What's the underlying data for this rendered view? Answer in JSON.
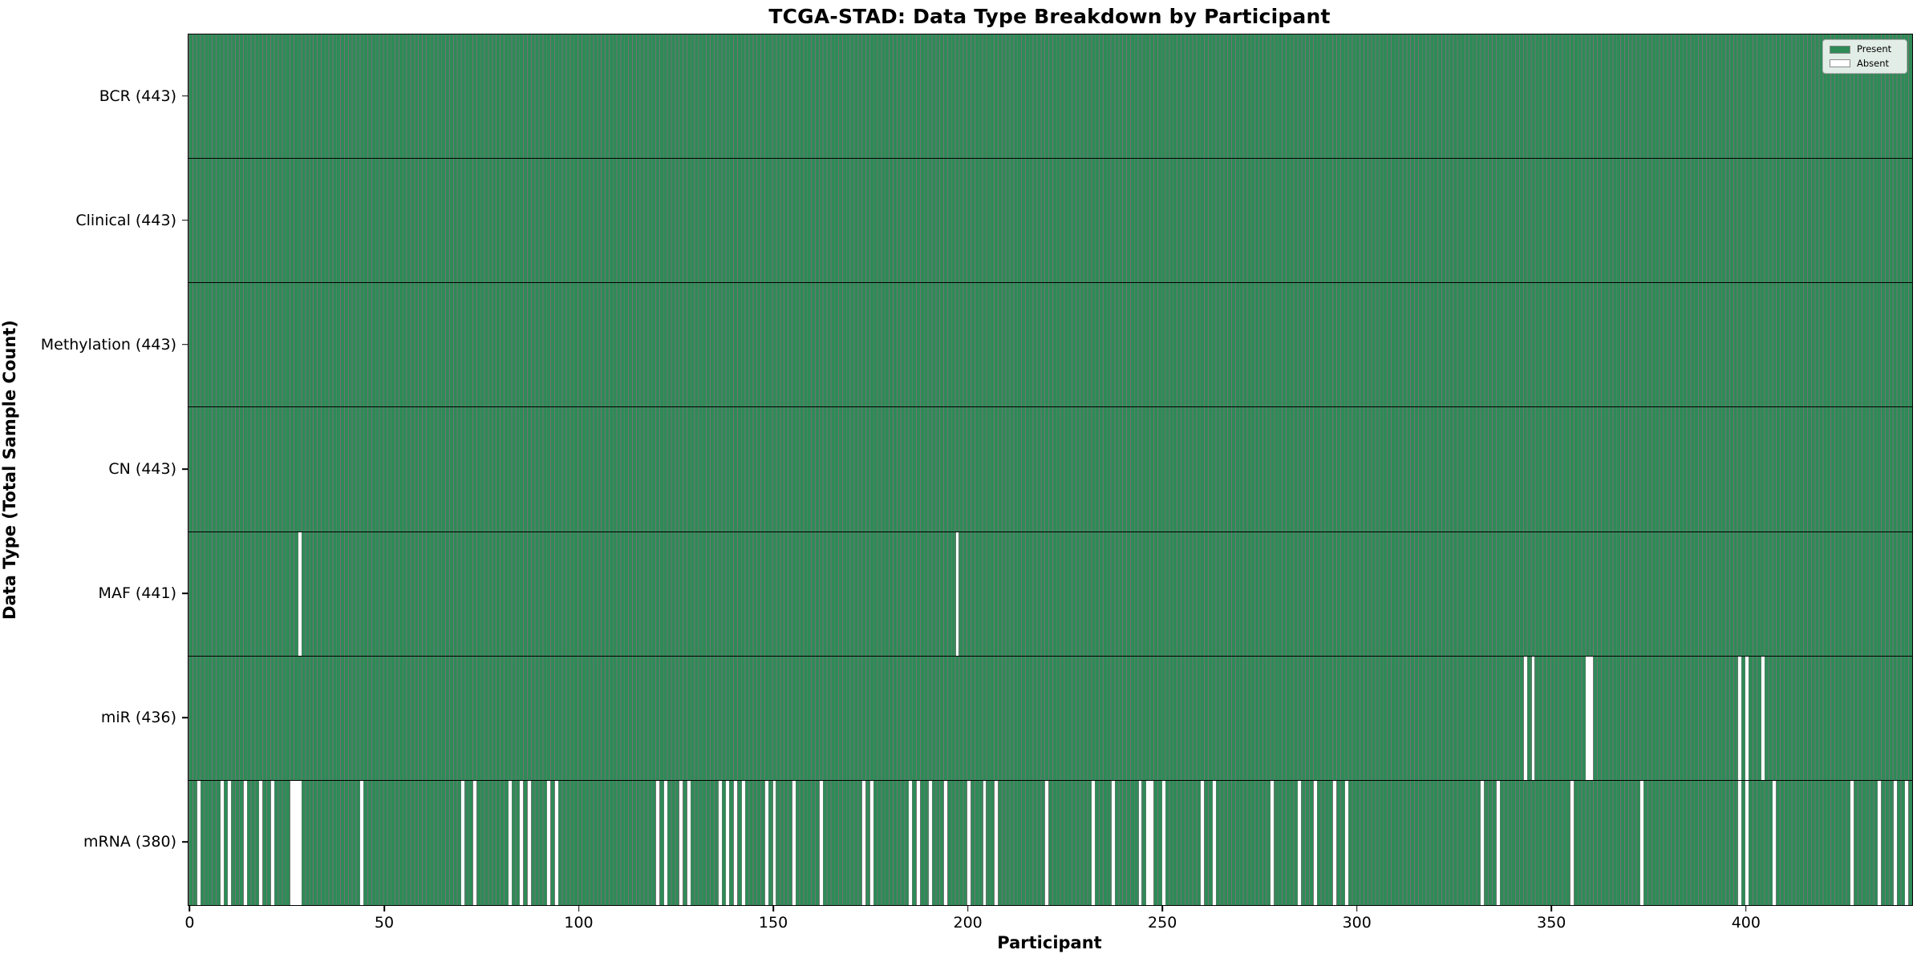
{
  "title": "TCGA-STAD: Data Type Breakdown by Participant",
  "legend": {
    "present_label": "Present",
    "absent_label": "Absent"
  },
  "chart_data": {
    "type": "heatmap",
    "title": "TCGA-STAD: Data Type Breakdown by Participant",
    "xlabel": "Participant",
    "ylabel": "Data Type (Total Sample Count)",
    "n_participants": 443,
    "x_ticks": [
      0,
      50,
      100,
      150,
      200,
      250,
      300,
      350,
      400
    ],
    "legend_entries": [
      "Present",
      "Absent"
    ],
    "legend_position": "upper right",
    "grid": false,
    "colors": {
      "present": "#2E8B57",
      "absent": "#FFFFFF",
      "bar_edge": "rgba(0,0,0,0.55)"
    },
    "rows": [
      {
        "data_type": "BCR",
        "label": "BCR (443)",
        "total_samples": 443,
        "absent_participants": []
      },
      {
        "data_type": "Clinical",
        "label": "Clinical (443)",
        "total_samples": 443,
        "absent_participants": []
      },
      {
        "data_type": "Methylation",
        "label": "Methylation (443)",
        "total_samples": 443,
        "absent_participants": []
      },
      {
        "data_type": "CN",
        "label": "CN (443)",
        "total_samples": 443,
        "absent_participants": []
      },
      {
        "data_type": "MAF",
        "label": "MAF (441)",
        "total_samples": 441,
        "absent_participants": [
          28,
          197
        ]
      },
      {
        "data_type": "miR",
        "label": "miR (436)",
        "total_samples": 436,
        "absent_participants": [
          343,
          345,
          359,
          360,
          398,
          400,
          404
        ]
      },
      {
        "data_type": "mRNA",
        "label": "mRNA (380)",
        "total_samples": 380,
        "absent_participants": [
          2,
          8,
          10,
          14,
          18,
          21,
          26,
          27,
          28,
          44,
          70,
          73,
          82,
          85,
          87,
          92,
          94,
          120,
          122,
          126,
          128,
          136,
          138,
          140,
          142,
          148,
          150,
          155,
          162,
          173,
          175,
          185,
          187,
          190,
          194,
          200,
          204,
          207,
          220,
          232,
          237,
          244,
          246,
          247,
          250,
          260,
          263,
          278,
          285,
          289,
          294,
          297,
          332,
          336,
          355,
          373,
          398,
          400,
          407,
          427,
          434,
          438,
          441
        ]
      }
    ]
  }
}
